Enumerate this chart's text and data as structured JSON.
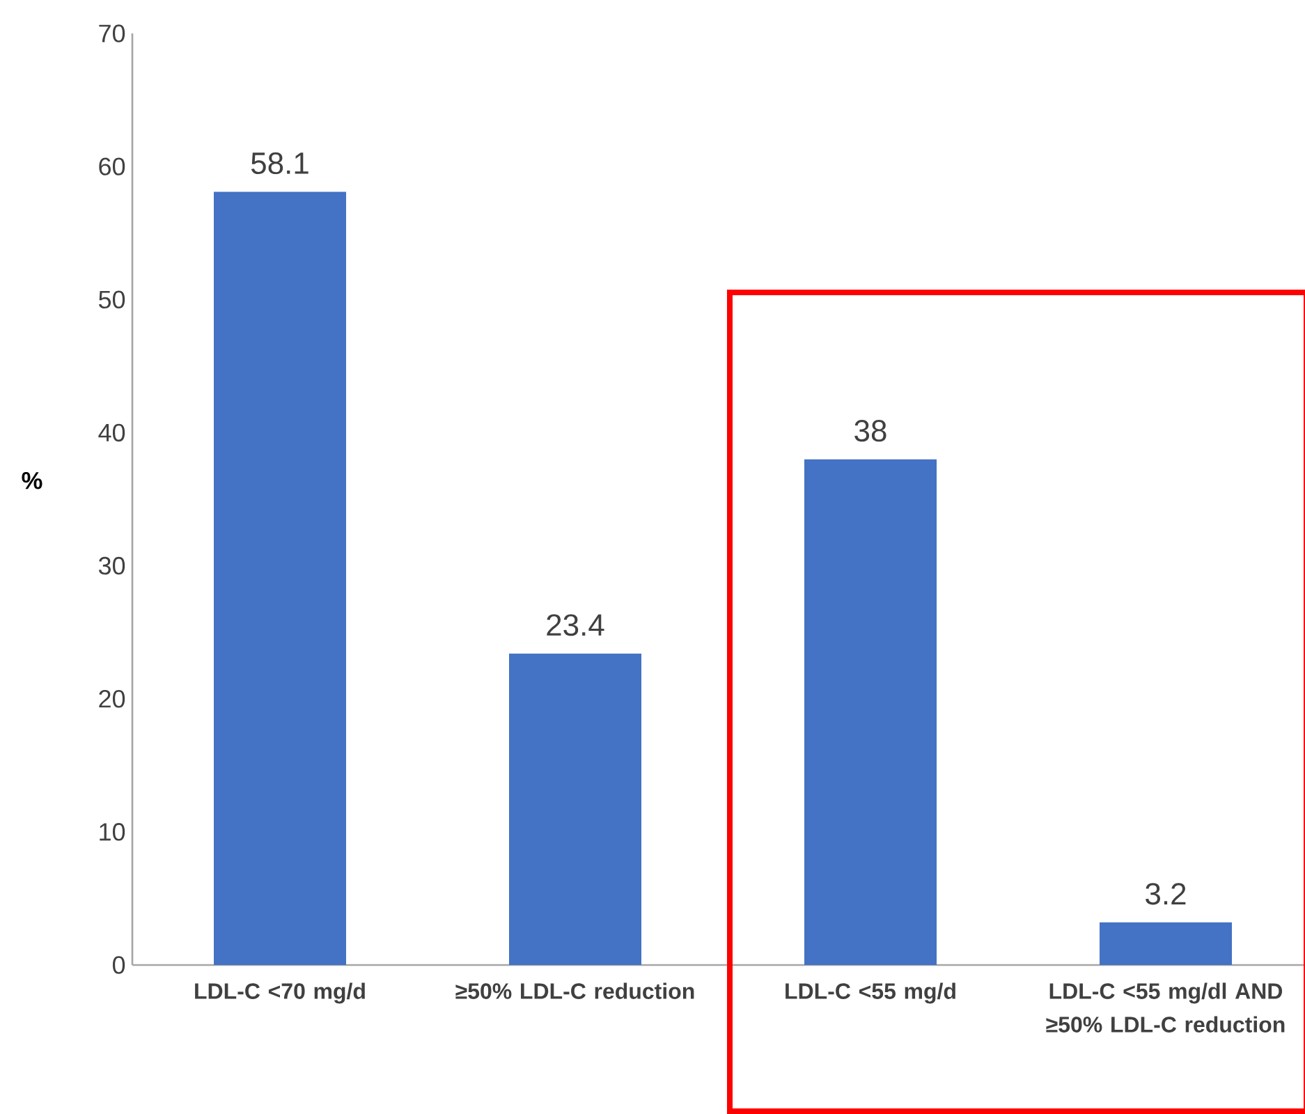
{
  "chart_data": {
    "type": "bar",
    "ylabel": "%",
    "categories": [
      "LDL-C <70 mg/d",
      "≥50% LDL-C reduction",
      "LDL-C <55 mg/d",
      "LDL-C <55 mg/dl AND ≥50% LDL-C reduction"
    ],
    "values": [
      58.1,
      23.4,
      38,
      3.2
    ],
    "color": "#4472c4",
    "data_labels": true,
    "ylim": [
      0,
      70
    ],
    "yticks": [
      0,
      10,
      20,
      30,
      40,
      50,
      60,
      70
    ],
    "grid": false
  }
}
